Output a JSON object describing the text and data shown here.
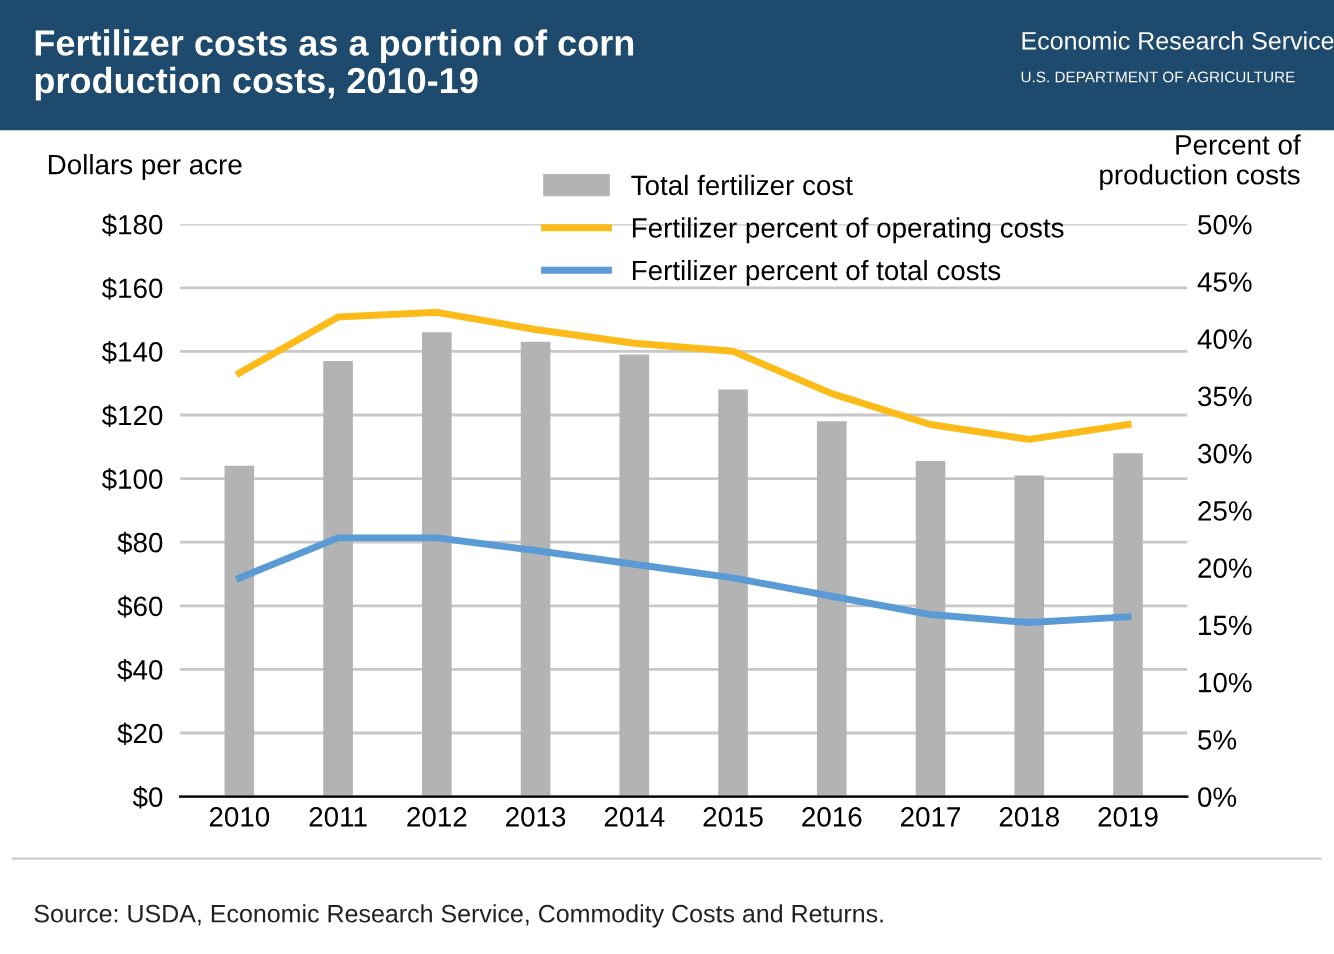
{
  "chart_data": {
    "type": "bar",
    "title": "Fertilizer costs as a portion of corn\nproduction costs, 2010-19",
    "xlabel": null,
    "ylabel": "Dollars per acre",
    "y2label": "Percent of\nproduction costs",
    "categories": [
      "2010",
      "2011",
      "2012",
      "2013",
      "2014",
      "2015",
      "2016",
      "2017",
      "2018",
      "2019"
    ],
    "series": [
      {
        "name": "Total fertilizer cost",
        "color": "#b3b3b3",
        "values": [
          104,
          137,
          146,
          143,
          139,
          128,
          118,
          105.5,
          101,
          108
        ]
      },
      {
        "name": "Fertilizer percent of operating costs",
        "type": "line",
        "axis": "y2",
        "color": "#fdbb19",
        "values": [
          37.0,
          41.9,
          42.3,
          40.8,
          39.6,
          38.9,
          35.2,
          32.5,
          31.2,
          32.5
        ]
      },
      {
        "name": "Fertilizer percent of total costs",
        "type": "line",
        "axis": "y2",
        "color": "#5b9bd5",
        "values": [
          19.1,
          22.6,
          22.6,
          21.5,
          20.3,
          19.1,
          17.5,
          15.9,
          15.2,
          15.7
        ]
      }
    ],
    "ylim": [
      0,
      180
    ],
    "yticks": [
      {
        "value": 0,
        "label": "$0"
      },
      {
        "value": 20,
        "label": "$20"
      },
      {
        "value": 40,
        "label": "$40"
      },
      {
        "value": 60,
        "label": "$60"
      },
      {
        "value": 80,
        "label": "$80"
      },
      {
        "value": 100,
        "label": "$100"
      },
      {
        "value": 120,
        "label": "$120"
      },
      {
        "value": 140,
        "label": "$140"
      },
      {
        "value": 160,
        "label": "$160"
      },
      {
        "value": 180,
        "label": "$180"
      }
    ],
    "y2lim": [
      0,
      50
    ],
    "y2ticks": [
      {
        "value": 0,
        "label": "0%"
      },
      {
        "value": 5,
        "label": "5%"
      },
      {
        "value": 10,
        "label": "10%"
      },
      {
        "value": 15,
        "label": "15%"
      },
      {
        "value": 20,
        "label": "20%"
      },
      {
        "value": 25,
        "label": "25%"
      },
      {
        "value": 30,
        "label": "30%"
      },
      {
        "value": 35,
        "label": "35%"
      },
      {
        "value": 40,
        "label": "40%"
      },
      {
        "value": 45,
        "label": "45%"
      },
      {
        "value": 50,
        "label": "50%"
      }
    ],
    "grid": "y",
    "legend": "top",
    "marker": "none",
    "line_style": "solid",
    "annotations": [
      "Economic Research Service",
      "U.S. DEPARTMENT OF AGRICULTURE",
      "Source: USDA, Economic Research Service, Commodity Costs and Returns."
    ]
  }
}
